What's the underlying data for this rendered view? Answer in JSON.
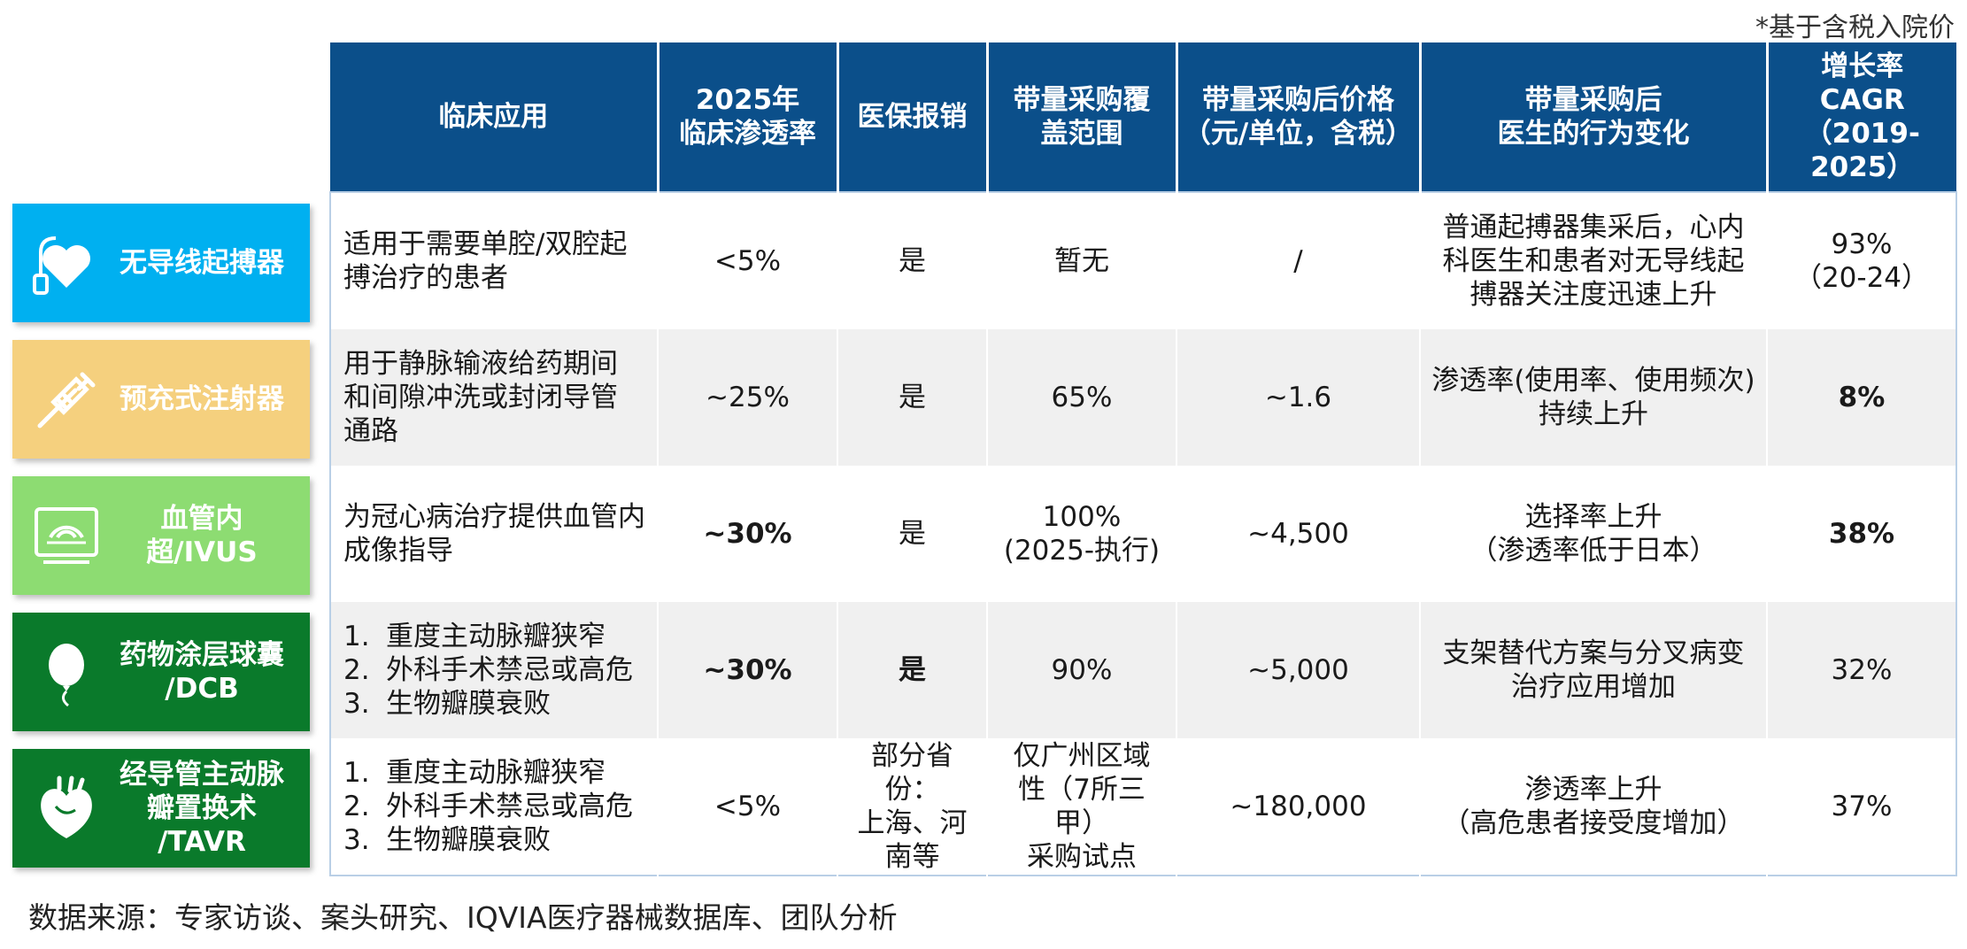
{
  "note": "*基于含税入院价",
  "headers": [
    "临床应用",
    "2025年\n临床渗透率",
    "医保报销",
    "带量采购覆\n盖范围",
    "带量采购后价格\n（元/单位，含税）",
    "带量采购后\n医生的行为变化",
    "增长率\nCAGR\n（2019-\n2025）"
  ],
  "rows": [
    {
      "label": "无导线起搏器",
      "icon": "leadless-pacemaker-icon",
      "color": "#00b0f0",
      "application": "适用于需要单腔/双腔起\n搏治疗的患者",
      "penetration": "<5%",
      "reimbursement": "是",
      "vbp_coverage": "暂无",
      "vbp_price": "/",
      "behavior": "普通起搏器集采后，心内\n科医生和患者对无导线起\n搏器关注度迅速上升",
      "cagr": "93%\n（20-24）"
    },
    {
      "label": "预充式注射器",
      "icon": "syringe-icon",
      "color": "#f5d07e",
      "application": "用于静脉输液给药期间\n和间隙冲洗或封闭导管\n通路",
      "penetration": "~25%",
      "reimbursement": "是",
      "vbp_coverage": "65%",
      "vbp_price": "~1.6",
      "behavior": "渗透率(使用率、使用频次)\n持续上升",
      "cagr": "8%"
    },
    {
      "label": "血管内超/IVUS",
      "icon": "ultrasound-monitor-icon",
      "color": "#8ddc72",
      "application": "为冠心病治疗提供血管内\n成像指导",
      "penetration": "~30%",
      "reimbursement": "是",
      "vbp_coverage": "100%\n(2025-执行)",
      "vbp_price": "~4,500",
      "behavior": "选择率上升\n（渗透率低于日本）",
      "cagr": "38%"
    },
    {
      "label": "药物涂层球囊\n/DCB",
      "icon": "balloon-icon",
      "color": "#0a7a2b",
      "application_list": [
        "重度主动脉瓣狭窄",
        "外科手术禁忌或高危",
        "生物瓣膜衰败"
      ],
      "penetration": "~30%",
      "reimbursement": "是",
      "vbp_coverage": "90%",
      "vbp_price": "~5,000",
      "behavior": "支架替代方案与分叉病变\n治疗应用增加",
      "cagr": "32%"
    },
    {
      "label": "经导管主动脉\n瓣置换术\n/TAVR",
      "icon": "heart-icon",
      "color": "#0a7a2b",
      "application_list": [
        "重度主动脉瓣狭窄",
        "外科手术禁忌或高危",
        "生物瓣膜衰败"
      ],
      "penetration": "<5%",
      "reimbursement": "部分省份：\n上海、河\n南等",
      "vbp_coverage": "仅广州区域\n性（7所三甲）\n采购试点",
      "vbp_price": "~180,000",
      "behavior": "渗透率上升\n（高危患者接受度增加）",
      "cagr": "37%"
    }
  ],
  "source": "数据来源：专家访谈、案头研究、IQVIA医疗器械数据库、团队分析"
}
